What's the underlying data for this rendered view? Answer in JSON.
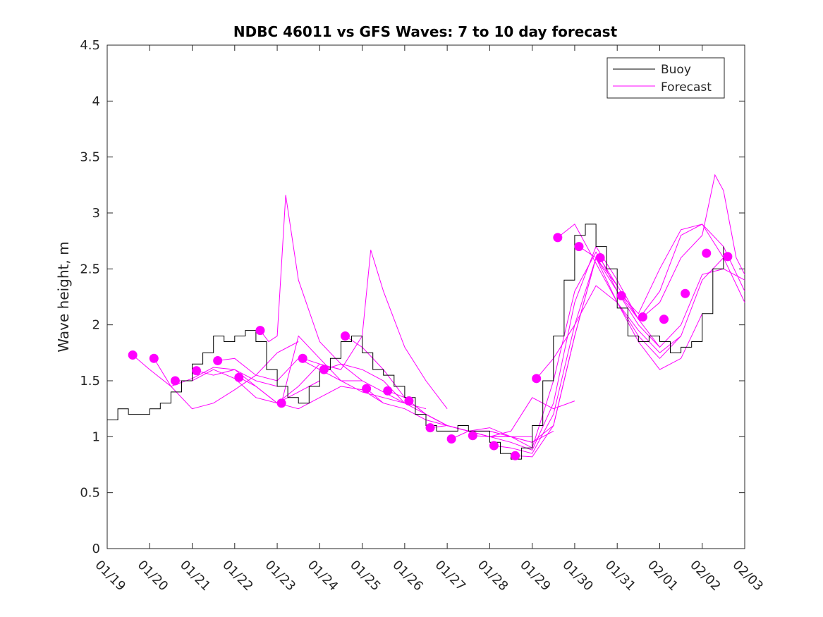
{
  "chart_data": {
    "type": "line",
    "title": "NDBC 46011 vs GFS Waves: 7 to 10 day forecast",
    "xlabel": "",
    "ylabel": "Wave height, m",
    "xlim": [
      0,
      15
    ],
    "ylim": [
      0,
      4.5
    ],
    "yticks": [
      0,
      0.5,
      1,
      1.5,
      2,
      2.5,
      3,
      3.5,
      4,
      4.5
    ],
    "ytick_labels": [
      "0",
      "0.5",
      "1",
      "1.5",
      "2",
      "2.5",
      "3",
      "3.5",
      "4",
      "4.5"
    ],
    "xtick_labels": [
      "01/19",
      "01/20",
      "01/21",
      "01/22",
      "01/23",
      "01/24",
      "01/25",
      "01/26",
      "01/27",
      "01/28",
      "01/29",
      "01/30",
      "01/31",
      "02/01",
      "02/02",
      "02/03"
    ],
    "legend": {
      "position": "top-right",
      "entries": [
        "Buoy",
        "Forecast"
      ]
    },
    "colors": {
      "buoy": "#000000",
      "forecast": "#ff00ff"
    },
    "buoy": {
      "name": "Buoy",
      "x": [
        0.0,
        0.25,
        0.5,
        0.75,
        1.0,
        1.25,
        1.5,
        1.75,
        2.0,
        2.25,
        2.5,
        2.75,
        3.0,
        3.25,
        3.5,
        3.75,
        4.0,
        4.25,
        4.5,
        4.75,
        5.0,
        5.25,
        5.5,
        5.75,
        6.0,
        6.25,
        6.5,
        6.75,
        7.0,
        7.25,
        7.5,
        7.75,
        8.0,
        8.25,
        8.5,
        8.75,
        9.0,
        9.25,
        9.5,
        9.75,
        10.0,
        10.25,
        10.5,
        10.75,
        11.0,
        11.25,
        11.5,
        11.75,
        12.0,
        12.25,
        12.5,
        12.75,
        13.0,
        13.25,
        13.5,
        13.75,
        14.0,
        14.25,
        14.5
      ],
      "y": [
        1.15,
        1.25,
        1.2,
        1.2,
        1.25,
        1.3,
        1.4,
        1.5,
        1.65,
        1.75,
        1.9,
        1.85,
        1.9,
        1.95,
        1.85,
        1.6,
        1.45,
        1.35,
        1.3,
        1.45,
        1.6,
        1.7,
        1.85,
        1.9,
        1.75,
        1.6,
        1.55,
        1.45,
        1.35,
        1.2,
        1.1,
        1.05,
        1.05,
        1.1,
        1.05,
        1.05,
        0.95,
        0.85,
        0.8,
        0.9,
        1.1,
        1.5,
        1.9,
        2.4,
        2.8,
        2.9,
        2.7,
        2.5,
        2.15,
        1.9,
        1.85,
        1.9,
        1.85,
        1.75,
        1.8,
        1.85,
        2.1,
        2.5,
        2.7
      ]
    },
    "forecast_runs": [
      {
        "x": [
          0.6,
          1.0,
          1.5,
          2.0,
          2.5,
          3.0,
          3.5,
          4.0
        ],
        "y": [
          1.73,
          1.6,
          1.45,
          1.52,
          1.62,
          1.6,
          1.5,
          1.45
        ]
      },
      {
        "x": [
          1.1,
          1.5,
          2.0,
          2.5,
          3.0,
          3.5,
          4.0,
          4.5
        ],
        "y": [
          1.7,
          1.45,
          1.25,
          1.3,
          1.42,
          1.55,
          1.75,
          1.85
        ]
      },
      {
        "x": [
          1.6,
          2.0,
          2.5,
          3.0,
          3.5,
          4.0,
          4.5,
          5.0
        ],
        "y": [
          1.5,
          1.5,
          1.6,
          1.52,
          1.35,
          1.3,
          1.4,
          1.5
        ]
      },
      {
        "x": [
          2.1,
          2.5,
          3.0,
          3.5,
          4.0,
          4.5,
          5.0,
          5.5
        ],
        "y": [
          1.59,
          1.55,
          1.6,
          1.45,
          1.3,
          1.45,
          1.65,
          1.6
        ]
      },
      {
        "x": [
          2.6,
          3.0,
          3.5,
          4.0,
          4.5,
          5.0,
          5.5,
          6.0
        ],
        "y": [
          1.68,
          1.7,
          1.55,
          1.5,
          1.7,
          1.6,
          1.5,
          1.5
        ]
      },
      {
        "x": [
          3.1,
          3.5,
          4.0,
          4.5,
          5.0,
          5.5,
          6.0,
          6.5
        ],
        "y": [
          1.53,
          1.45,
          1.3,
          1.25,
          1.35,
          1.45,
          1.42,
          1.3
        ]
      },
      {
        "x": [
          3.6,
          3.8,
          4.0,
          4.2,
          4.5,
          5.0,
          5.5,
          6.0,
          6.5,
          7.0
        ],
        "y": [
          1.95,
          1.85,
          1.9,
          3.16,
          2.4,
          1.85,
          1.65,
          1.5,
          1.4,
          1.3
        ]
      },
      {
        "x": [
          4.1,
          4.5,
          5.0,
          5.5,
          6.0,
          6.5,
          7.0,
          7.5
        ],
        "y": [
          1.3,
          1.9,
          1.7,
          1.5,
          1.4,
          1.35,
          1.3,
          1.25
        ]
      },
      {
        "x": [
          4.6,
          5.0,
          5.5,
          6.0,
          6.2,
          6.5,
          7.0,
          7.5,
          8.0
        ],
        "y": [
          1.7,
          1.65,
          1.6,
          1.9,
          2.67,
          2.3,
          1.8,
          1.5,
          1.25
        ]
      },
      {
        "x": [
          5.1,
          5.5,
          6.0,
          6.5,
          7.0,
          7.5,
          8.0,
          8.5,
          9.0
        ],
        "y": [
          1.6,
          1.65,
          1.6,
          1.5,
          1.3,
          1.2,
          1.1,
          1.05,
          1.0
        ]
      },
      {
        "x": [
          5.6,
          6.0,
          6.5,
          7.0,
          7.5,
          8.0,
          8.5,
          9.0,
          9.5
        ],
        "y": [
          1.9,
          1.8,
          1.6,
          1.35,
          1.2,
          1.1,
          1.05,
          1.0,
          1.0
        ]
      },
      {
        "x": [
          6.1,
          6.5,
          7.0,
          7.5,
          8.0,
          8.5,
          9.0,
          9.5,
          10.0
        ],
        "y": [
          1.43,
          1.3,
          1.25,
          1.15,
          1.1,
          1.05,
          1.05,
          1.0,
          1.0
        ]
      },
      {
        "x": [
          6.6,
          7.0,
          7.5,
          8.0,
          8.5,
          9.0,
          9.5,
          10.0,
          10.5
        ],
        "y": [
          1.41,
          1.35,
          1.2,
          1.1,
          1.05,
          1.0,
          1.0,
          0.95,
          1.05
        ]
      },
      {
        "x": [
          7.1,
          7.5,
          8.0,
          8.5,
          9.0,
          9.5,
          10.0,
          10.5,
          11.0
        ],
        "y": [
          1.32,
          1.2,
          1.1,
          1.05,
          1.0,
          1.05,
          1.35,
          1.25,
          1.32
        ]
      },
      {
        "x": [
          7.6,
          8.0,
          8.5,
          9.0,
          9.5,
          10.0,
          10.5,
          11.0,
          11.5
        ],
        "y": [
          1.08,
          1.1,
          1.05,
          1.05,
          1.0,
          0.95,
          1.1,
          1.9,
          2.6
        ]
      },
      {
        "x": [
          8.1,
          8.5,
          9.0,
          9.5,
          10.0,
          10.5,
          11.0,
          11.5,
          12.0
        ],
        "y": [
          0.98,
          1.05,
          1.08,
          1.0,
          0.9,
          1.5,
          2.3,
          2.65,
          2.35
        ]
      },
      {
        "x": [
          8.6,
          9.0,
          9.5,
          10.0,
          10.5,
          11.0,
          11.5,
          12.0,
          12.5
        ],
        "y": [
          1.01,
          1.0,
          0.95,
          0.88,
          1.3,
          2.2,
          2.7,
          2.4,
          2.05
        ]
      },
      {
        "x": [
          9.1,
          9.5,
          10.0,
          10.5,
          11.0,
          11.5,
          12.0,
          12.5,
          13.0
        ],
        "y": [
          0.92,
          0.9,
          0.85,
          1.2,
          2.0,
          2.6,
          2.3,
          2.0,
          1.8
        ]
      },
      {
        "x": [
          9.6,
          10.0,
          10.5,
          11.0,
          11.5,
          12.0,
          12.5,
          13.0,
          13.5
        ],
        "y": [
          0.83,
          0.82,
          1.1,
          1.9,
          2.6,
          2.2,
          1.9,
          1.7,
          1.9
        ]
      },
      {
        "x": [
          10.1,
          10.5,
          11.0,
          11.5,
          12.0,
          12.5,
          13.0,
          13.5,
          14.0
        ],
        "y": [
          1.52,
          1.7,
          2.0,
          2.35,
          2.2,
          1.85,
          1.6,
          1.7,
          2.1
        ]
      },
      {
        "x": [
          10.6,
          11.0,
          11.5,
          12.0,
          12.5,
          13.0,
          13.5,
          14.0,
          14.5
        ],
        "y": [
          2.78,
          2.9,
          2.55,
          2.2,
          1.95,
          1.75,
          1.9,
          2.4,
          2.6
        ]
      },
      {
        "x": [
          11.1,
          11.5,
          12.0,
          12.5,
          13.0,
          13.5,
          14.0,
          14.5,
          15.0
        ],
        "y": [
          2.7,
          2.6,
          2.35,
          2.05,
          1.8,
          2.0,
          2.45,
          2.5,
          2.4
        ]
      },
      {
        "x": [
          11.6,
          12.0,
          12.5,
          13.0,
          13.5,
          14.0,
          14.5,
          15.0
        ],
        "y": [
          2.6,
          2.3,
          2.05,
          2.3,
          2.8,
          2.9,
          2.7,
          2.3
        ]
      },
      {
        "x": [
          12.1,
          12.5,
          13.0,
          13.5,
          14.0,
          14.5,
          15.0
        ],
        "y": [
          2.26,
          2.1,
          2.5,
          2.85,
          2.9,
          2.6,
          2.2
        ]
      },
      {
        "x": [
          12.6,
          13.0,
          13.5,
          14.0,
          14.3,
          14.5,
          14.8,
          15.0
        ],
        "y": [
          2.07,
          2.2,
          2.6,
          2.8,
          3.34,
          3.2,
          2.6,
          2.45
        ]
      }
    ],
    "forecast_points": {
      "x": [
        0.6,
        1.1,
        1.6,
        2.1,
        2.6,
        3.1,
        3.6,
        4.1,
        4.6,
        5.1,
        5.6,
        6.1,
        6.6,
        7.1,
        7.6,
        8.1,
        8.6,
        9.1,
        9.6,
        10.1,
        10.6,
        11.1,
        11.6,
        12.1,
        12.6,
        13.1,
        13.6,
        14.1,
        14.6
      ],
      "y": [
        1.73,
        1.7,
        1.5,
        1.59,
        1.68,
        1.53,
        1.95,
        1.3,
        1.7,
        1.6,
        1.9,
        1.43,
        1.41,
        1.32,
        1.08,
        0.98,
        1.01,
        0.92,
        0.83,
        1.52,
        2.78,
        2.7,
        2.6,
        2.26,
        2.07,
        2.05,
        2.28,
        2.64,
        2.61
      ]
    }
  }
}
